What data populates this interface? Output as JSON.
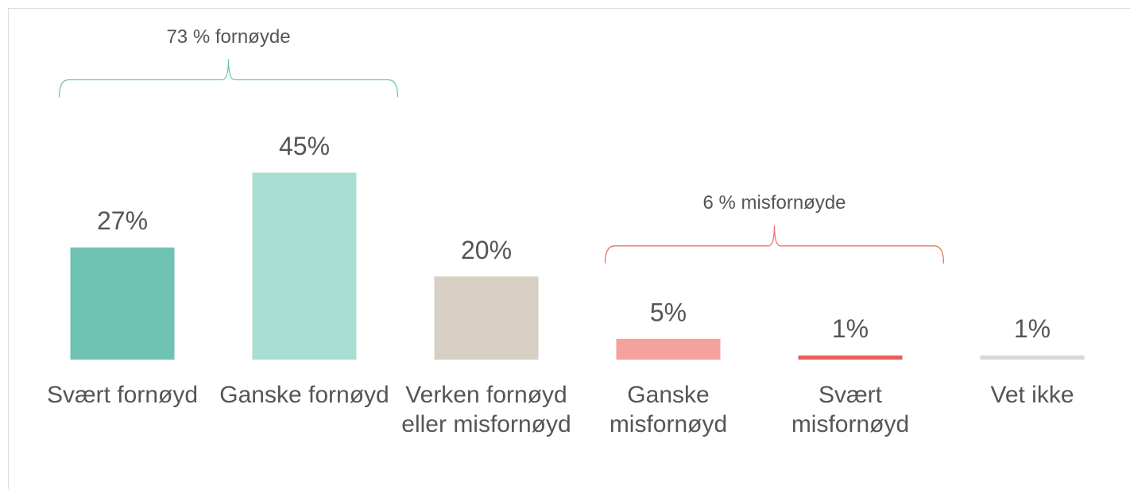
{
  "chart_data": {
    "type": "bar",
    "categories": [
      "Svært fornøyd",
      "Ganske fornøyd",
      "Verken fornøyd eller misfornøyd",
      "Ganske misfornøyd",
      "Svært misfornøyd",
      "Vet ikke"
    ],
    "values": [
      27,
      45,
      20,
      5,
      1,
      1
    ],
    "value_labels": [
      "27%",
      "45%",
      "20%",
      "5%",
      "1%",
      "1%"
    ],
    "colors": [
      "#6fc3b3",
      "#a9ded2",
      "#d7cfc3",
      "#f5a29e",
      "#e8625b",
      "#d9d9d9"
    ],
    "ylim": [
      0,
      60
    ],
    "annotations": [
      {
        "text": "73 % fornøyde",
        "color": "#6fc3b3",
        "span": [
          0,
          1
        ]
      },
      {
        "text": "6 % misfornøyde",
        "color": "#e8745f",
        "span": [
          3,
          4
        ]
      }
    ]
  }
}
